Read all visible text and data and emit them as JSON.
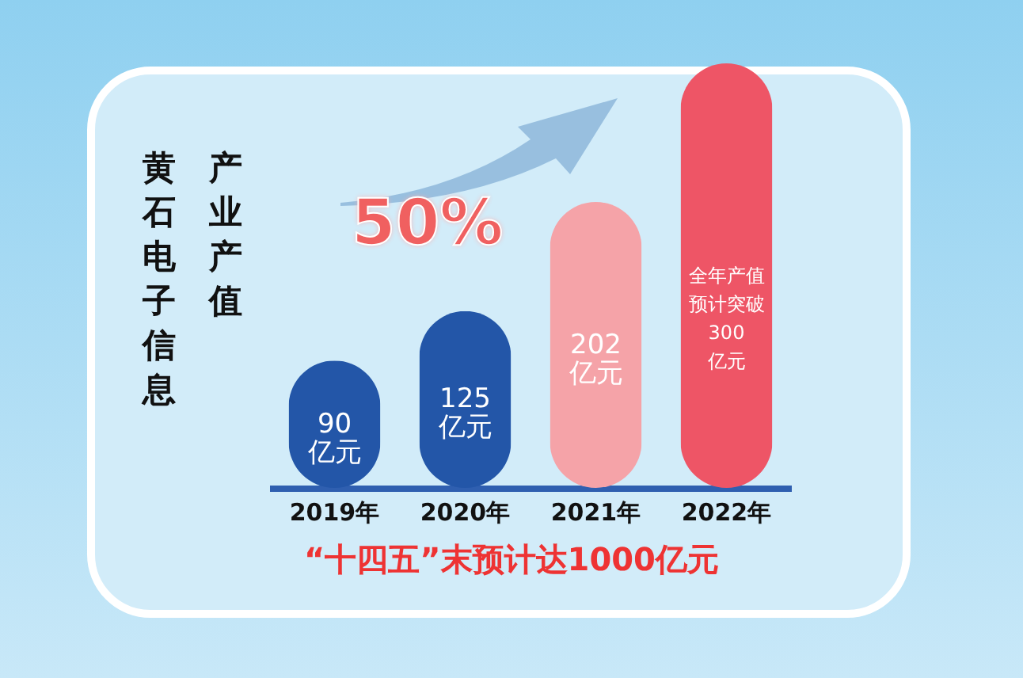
{
  "chart_data": {
    "type": "bar",
    "title": "黄石电子信息产业产值",
    "categories": [
      "2019年",
      "2020年",
      "2021年",
      "2022年"
    ],
    "values": [
      90,
      125,
      202,
      300
    ],
    "colors": [
      "#2356a8",
      "#2356a8",
      "#f5a3a8",
      "#ee5566"
    ],
    "value_labels": [
      "90亿元",
      "125亿元",
      "202亿元",
      "全年产值预计突破300亿元"
    ],
    "annotations": [
      "50%",
      "“十四五”末预计达1000亿元"
    ]
  }
}
